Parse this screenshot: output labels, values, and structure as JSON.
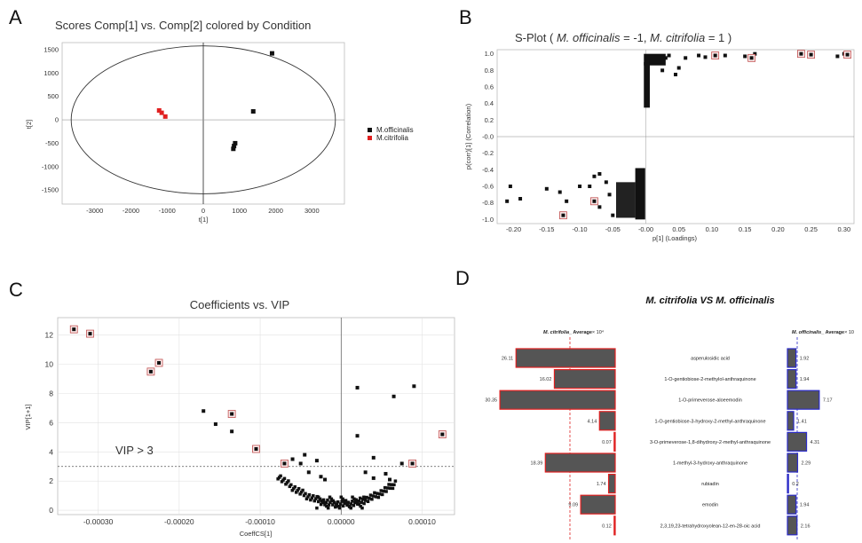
{
  "chart_data": [
    {
      "panel": "A",
      "type": "scatter",
      "title": "Scores Comp[1] vs. Comp[2] colored by Condition",
      "xlabel": "t[1]",
      "ylabel": "t[2]",
      "xlim": [
        -3900,
        3900
      ],
      "ylim": [
        -1800,
        1650
      ],
      "xticks": [
        -3000,
        -2000,
        -1000,
        0,
        1000,
        2000,
        3000
      ],
      "yticks": [
        -1500,
        -1000,
        -500,
        0,
        500,
        1000,
        1500
      ],
      "ellipse": {
        "rx": 3650,
        "ry": 1580
      },
      "legend_position": "right",
      "colors": {
        "M.officinalis": "#111111",
        "M.citrifolia": "#e02020"
      },
      "series": [
        {
          "name": "M.officinalis",
          "points": [
            [
              1900,
              1420
            ],
            [
              1380,
              180
            ],
            [
              880,
              -500
            ],
            [
              850,
              -560
            ],
            [
              830,
              -620
            ]
          ]
        },
        {
          "name": "M.citrifolia",
          "points": [
            [
              -1220,
              200
            ],
            [
              -1150,
              150
            ],
            [
              -1050,
              70
            ]
          ]
        }
      ]
    },
    {
      "panel": "B",
      "type": "scatter",
      "title_prefix": "S-Plot ( ",
      "title_species1": "M. officinalis",
      "title_mid": " = -1, ",
      "title_species2": "M. citrifolia",
      "title_suffix": " = 1 )",
      "xlabel": "p[1] (Loadings)",
      "ylabel": "p(corr)[1] (Correlation)",
      "xlim": [
        -0.225,
        0.315
      ],
      "ylim": [
        -1.05,
        1.05
      ],
      "xticks": [
        "-0.20",
        "-0.15",
        "-0.10",
        "-0.05",
        "-0.00",
        "0.05",
        "0.10",
        "0.15",
        "0.20",
        "0.25",
        "0.30"
      ],
      "yticks": [
        "1.0",
        "0.8",
        "0.6",
        "0.4",
        "0.2",
        "-0.0",
        "-0.2",
        "-0.4",
        "-0.6",
        "-0.8",
        "-1.0"
      ],
      "points": [
        [
          -0.205,
          -0.6
        ],
        [
          -0.21,
          -0.78
        ],
        [
          -0.19,
          -0.75
        ],
        [
          -0.15,
          -0.63
        ],
        [
          -0.13,
          -0.67
        ],
        [
          -0.12,
          -0.78
        ],
        [
          -0.1,
          -0.6
        ],
        [
          -0.085,
          -0.6
        ],
        [
          -0.078,
          -0.48
        ],
        [
          -0.07,
          -0.45
        ],
        [
          -0.06,
          -0.55
        ],
        [
          -0.055,
          -0.7
        ],
        [
          -0.07,
          -0.85
        ],
        [
          -0.05,
          -0.95
        ],
        [
          0.025,
          0.8
        ],
        [
          0.03,
          0.95
        ],
        [
          0.035,
          0.98
        ],
        [
          0.045,
          0.75
        ],
        [
          0.05,
          0.83
        ],
        [
          0.06,
          0.95
        ],
        [
          0.08,
          0.98
        ],
        [
          0.09,
          0.96
        ],
        [
          0.12,
          0.98
        ],
        [
          0.15,
          0.97
        ],
        [
          0.165,
          1.0
        ],
        [
          0.3,
          1.0
        ],
        [
          0.29,
          0.97
        ]
      ],
      "highlighted": [
        [
          -0.125,
          -0.95
        ],
        [
          -0.078,
          -0.78
        ],
        [
          0.105,
          0.98
        ],
        [
          0.16,
          0.95
        ],
        [
          0.235,
          1.0
        ],
        [
          0.25,
          0.99
        ],
        [
          0.305,
          0.99
        ]
      ]
    },
    {
      "panel": "C",
      "type": "scatter",
      "title": "Coefficients vs. VIP",
      "xlabel": "CoeffCS[1]",
      "ylabel": "VIP[1+1]",
      "xlim": [
        -0.00035,
        0.00014
      ],
      "ylim": [
        -0.3,
        13.2
      ],
      "xticks": [
        "-0.00030",
        "-0.00020",
        "-0.00010",
        "0.00000",
        "0.00010"
      ],
      "yticks": [
        0,
        2,
        4,
        6,
        8,
        10,
        12
      ],
      "threshold": {
        "value": 3,
        "label": "VIP > 3"
      },
      "points": [
        [
          -0.00017,
          6.8
        ],
        [
          -0.000155,
          5.9
        ],
        [
          -0.000135,
          5.4
        ],
        [
          -6e-05,
          3.5
        ],
        [
          -4.5e-05,
          3.8
        ],
        [
          -5e-05,
          3.2
        ],
        [
          -3e-05,
          3.4
        ],
        [
          2e-05,
          5.1
        ],
        [
          2e-05,
          8.4
        ],
        [
          6.5e-05,
          7.8
        ],
        [
          9e-05,
          8.5
        ],
        [
          4e-05,
          3.6
        ],
        [
          7.5e-05,
          3.2
        ],
        [
          3e-05,
          2.6
        ],
        [
          4e-05,
          2.2
        ],
        [
          5.5e-05,
          2.5
        ],
        [
          6e-05,
          2.1
        ],
        [
          -4e-05,
          2.6
        ],
        [
          -2.5e-05,
          2.3
        ],
        [
          -2e-05,
          2.1
        ]
      ],
      "highlighted": [
        [
          -0.00033,
          12.4
        ],
        [
          -0.00031,
          12.1
        ],
        [
          -0.000225,
          10.1
        ],
        [
          -0.000235,
          9.5
        ],
        [
          -0.000135,
          6.6
        ],
        [
          -0.000105,
          4.2
        ],
        [
          -7e-05,
          3.2
        ],
        [
          8.8e-05,
          3.2
        ],
        [
          0.000125,
          5.2
        ]
      ]
    },
    {
      "panel": "D",
      "type": "bar",
      "title_species1": "M. citrifolia",
      "title_vs": " VS ",
      "title_species2": "M. officinalis",
      "left_header_species": "M. citrifolia",
      "left_header_unit": "_ Average",
      "left_header_exp": "× 10⁴",
      "right_header_species": "M. officinalis",
      "right_header_unit": "_ Average",
      "right_header_exp": "× 10",
      "categories": [
        "asperulosidic acid",
        "1-O-gentiobiose-2-methylol-anthraquinone",
        "1-O-primeverose-aloeemodin",
        "1-O-gentiobiose-3-hydroxy-2-methyl-anthraquinone",
        "3-O-primeverose-1,8-dihydroxy-2-methyl-anthraquinone",
        "1-methyl-3-hydroxy-anthraquinone",
        "rubiadin",
        "emodin",
        "2,3,19,23-tetrahydroxyolean-12-en-28-oic acid"
      ],
      "series": [
        {
          "name": "M. citrifolia",
          "values": [
            26.11,
            16.02,
            30.35,
            4.14,
            0.07,
            18.39,
            1.74,
            9.09,
            0.12
          ]
        },
        {
          "name": "M. officinalis",
          "values": [
            1.92,
            1.94,
            7.17,
            1.41,
            4.31,
            2.29,
            0.2,
            1.94,
            2.16
          ]
        }
      ],
      "left_labels": [
        "26.11",
        "16.02",
        "30.35",
        "4.14",
        "0.07",
        "18.39",
        "1.74",
        "9.09",
        "0.12"
      ],
      "right_labels": [
        "1.92",
        "1.94",
        "7.17",
        "1.41",
        "4.31",
        "2.29",
        "0.2",
        "1.94",
        "2.16"
      ],
      "colors": {
        "bar_fill": "#555555",
        "left_border": "#e02020",
        "right_border": "#2c2cc8"
      }
    }
  ]
}
